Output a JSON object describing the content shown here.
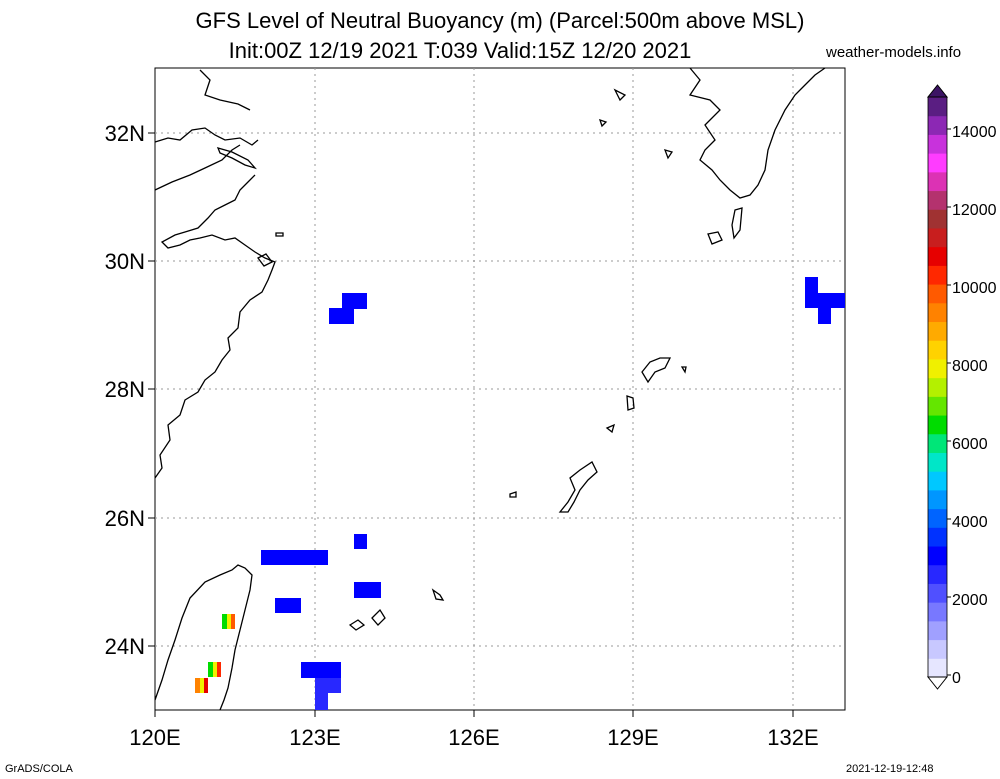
{
  "header": {
    "title_line1": "GFS Level of Neutral Buoyancy (m) (Parcel:500m above MSL)",
    "title_line2": "Init:00Z 12/19 2021 T:039 Valid:15Z 12/20 2021",
    "site": "weather-models.info"
  },
  "map": {
    "lat_labels": [
      "32N",
      "30N",
      "28N",
      "26N",
      "24N"
    ],
    "lon_labels": [
      "120E",
      "123E",
      "126E",
      "129E",
      "132E"
    ],
    "gridlines": true
  },
  "colorbar": {
    "tick_labels": [
      "14000",
      "12000",
      "10000",
      "8000",
      "6000",
      "4000",
      "2000",
      "0"
    ],
    "colors": [
      "#e6e6ff",
      "#c8c8ff",
      "#a0a0ff",
      "#7878ff",
      "#5050ff",
      "#2828ff",
      "#0000ff",
      "#0032ff",
      "#0064ff",
      "#0096ff",
      "#00c8ff",
      "#00e6c8",
      "#00e678",
      "#00dc00",
      "#64e600",
      "#b4f000",
      "#f0f000",
      "#ffd200",
      "#ffaa00",
      "#ff8200",
      "#ff5a00",
      "#ff2800",
      "#e60000",
      "#c81e1e",
      "#a03232",
      "#b4326e",
      "#dc32b4",
      "#ff3cff",
      "#c832dc",
      "#8c28b4",
      "#5a1e82"
    ]
  },
  "footer": {
    "left": "GrADS/COLA",
    "right": "2021-12-19-12:48"
  }
}
